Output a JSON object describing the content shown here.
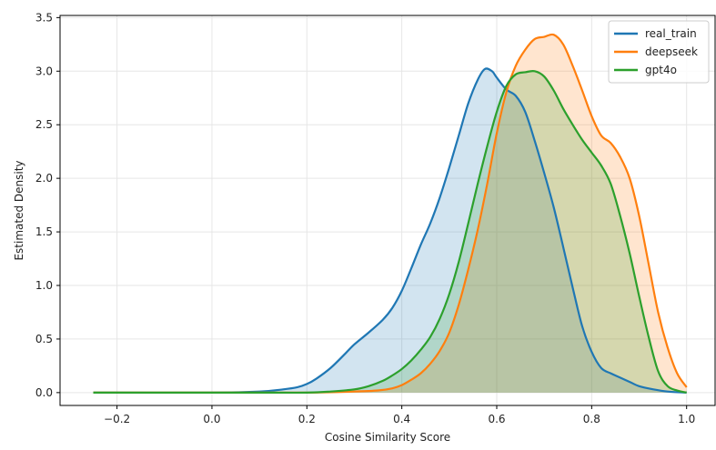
{
  "chart_data": {
    "type": "area",
    "title": "",
    "xlabel": "Cosine Similarity Score",
    "ylabel": "Estimated Density",
    "xlim": [
      -0.32,
      1.06
    ],
    "ylim": [
      -0.12,
      3.52
    ],
    "xticks": [
      -0.2,
      0.0,
      0.2,
      0.4,
      0.6,
      0.8,
      1.0
    ],
    "xtick_labels": [
      "−0.2",
      "0.0",
      "0.2",
      "0.4",
      "0.6",
      "0.8",
      "1.0"
    ],
    "yticks": [
      0.0,
      0.5,
      1.0,
      1.5,
      2.0,
      2.5,
      3.0,
      3.5
    ],
    "ytick_labels": [
      "0.0",
      "0.5",
      "1.0",
      "1.5",
      "2.0",
      "2.5",
      "3.0",
      "3.5"
    ],
    "grid": true,
    "legend_position": "top-right",
    "series": [
      {
        "name": "real_train",
        "color": "#1f77b4",
        "x": [
          -0.25,
          0.0,
          0.1,
          0.15,
          0.18,
          0.2,
          0.22,
          0.25,
          0.28,
          0.3,
          0.33,
          0.36,
          0.38,
          0.4,
          0.42,
          0.44,
          0.46,
          0.48,
          0.5,
          0.52,
          0.54,
          0.56,
          0.575,
          0.59,
          0.6,
          0.62,
          0.64,
          0.66,
          0.68,
          0.7,
          0.72,
          0.74,
          0.76,
          0.78,
          0.8,
          0.82,
          0.84,
          0.86,
          0.88,
          0.9,
          0.93,
          0.96,
          1.0
        ],
        "y": [
          0.0,
          0.0,
          0.01,
          0.03,
          0.05,
          0.08,
          0.13,
          0.23,
          0.36,
          0.45,
          0.56,
          0.68,
          0.79,
          0.95,
          1.16,
          1.38,
          1.58,
          1.82,
          2.1,
          2.4,
          2.7,
          2.92,
          3.02,
          3.0,
          2.94,
          2.83,
          2.77,
          2.62,
          2.35,
          2.05,
          1.73,
          1.36,
          0.98,
          0.62,
          0.38,
          0.23,
          0.18,
          0.14,
          0.1,
          0.06,
          0.03,
          0.01,
          0.0
        ]
      },
      {
        "name": "deepseek",
        "color": "#ff7f0e",
        "x": [
          -0.25,
          0.0,
          0.2,
          0.3,
          0.35,
          0.38,
          0.4,
          0.42,
          0.44,
          0.46,
          0.48,
          0.5,
          0.52,
          0.54,
          0.56,
          0.58,
          0.6,
          0.62,
          0.64,
          0.66,
          0.68,
          0.7,
          0.72,
          0.74,
          0.76,
          0.78,
          0.8,
          0.82,
          0.84,
          0.86,
          0.88,
          0.9,
          0.92,
          0.94,
          0.96,
          0.98,
          1.0
        ],
        "y": [
          0.0,
          0.0,
          0.0,
          0.01,
          0.02,
          0.04,
          0.07,
          0.12,
          0.18,
          0.27,
          0.39,
          0.56,
          0.82,
          1.15,
          1.52,
          1.95,
          2.42,
          2.8,
          3.05,
          3.2,
          3.3,
          3.32,
          3.34,
          3.25,
          3.05,
          2.82,
          2.58,
          2.4,
          2.33,
          2.2,
          2.0,
          1.65,
          1.2,
          0.75,
          0.42,
          0.18,
          0.05
        ]
      },
      {
        "name": "gpt4o",
        "color": "#2ca02c",
        "x": [
          -0.25,
          0.0,
          0.1,
          0.2,
          0.25,
          0.3,
          0.33,
          0.36,
          0.38,
          0.4,
          0.42,
          0.44,
          0.46,
          0.48,
          0.5,
          0.52,
          0.54,
          0.56,
          0.58,
          0.6,
          0.62,
          0.64,
          0.66,
          0.68,
          0.7,
          0.72,
          0.74,
          0.76,
          0.78,
          0.8,
          0.82,
          0.84,
          0.86,
          0.88,
          0.9,
          0.92,
          0.94,
          0.96,
          0.98,
          1.0
        ],
        "y": [
          0.0,
          0.0,
          0.0,
          0.0,
          0.01,
          0.03,
          0.06,
          0.11,
          0.16,
          0.22,
          0.3,
          0.4,
          0.52,
          0.69,
          0.92,
          1.22,
          1.58,
          1.95,
          2.3,
          2.62,
          2.86,
          2.97,
          2.99,
          3.0,
          2.95,
          2.82,
          2.65,
          2.5,
          2.36,
          2.24,
          2.12,
          1.95,
          1.65,
          1.3,
          0.9,
          0.52,
          0.2,
          0.06,
          0.02,
          0.0
        ]
      }
    ]
  }
}
